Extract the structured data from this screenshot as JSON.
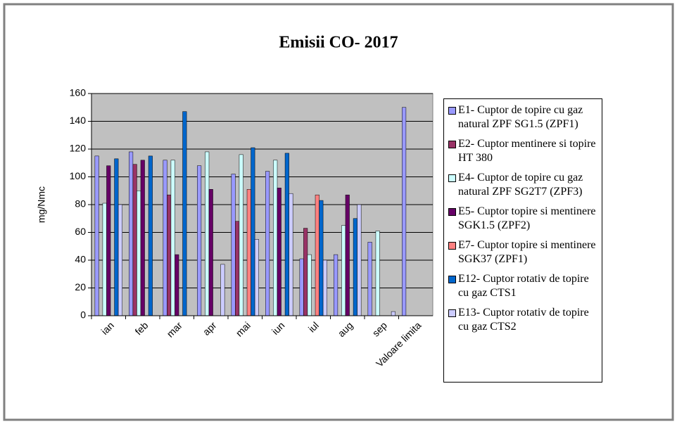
{
  "chart_data": {
    "type": "bar",
    "title": "Emisii CO- 2017",
    "y_label": "mg/Nmc",
    "categories": [
      "ian",
      "feb",
      "mar",
      "apr",
      "mai",
      "iun",
      "iul",
      "aug",
      "sep",
      "Valoare limita"
    ],
    "series": [
      {
        "name": "E1- Cuptor de topire cu gaz natural ZPF SG1.5 (ZPF1)",
        "color": "#9999ff",
        "values": [
          115,
          118,
          112,
          108,
          102,
          104,
          41,
          44,
          53,
          150
        ]
      },
      {
        "name": "E2- Cuptor mentinere si topire HT 380",
        "color": "#993366",
        "values": [
          null,
          109,
          87,
          null,
          68,
          null,
          63,
          null,
          null,
          null
        ]
      },
      {
        "name": "E4- Cuptor de topire cu gaz natural ZPF SG2T7 (ZPF3)",
        "color": "#ccffff",
        "values": [
          81,
          90,
          112,
          118,
          116,
          112,
          44,
          65,
          61,
          null
        ]
      },
      {
        "name": "E5- Cuptor topire si mentinere SGK1.5 (ZPF2)",
        "color": "#660066",
        "values": [
          108,
          112,
          44,
          91,
          null,
          92,
          null,
          87,
          null,
          null
        ]
      },
      {
        "name": "E7- Cuptor topire si mentinere SGK37 (ZPF1)",
        "color": "#ff8080",
        "values": [
          null,
          null,
          null,
          null,
          91,
          null,
          87,
          null,
          null,
          null
        ]
      },
      {
        "name": "E12- Cuptor rotativ de topire cu gaz CTS1",
        "color": "#0066cc",
        "values": [
          113,
          115,
          147,
          null,
          121,
          117,
          83,
          70,
          null,
          null
        ]
      },
      {
        "name": "E13- Cuptor rotativ de topire cu gaz CTS2",
        "color": "#ccccff",
        "values": [
          80,
          null,
          null,
          37,
          55,
          88,
          40,
          80,
          3,
          null
        ]
      }
    ],
    "ylim": [
      0,
      160
    ],
    "yticks": [
      0,
      20,
      40,
      60,
      80,
      100,
      120,
      140,
      160
    ],
    "grid": true,
    "plot_background": "#c0c0c0"
  }
}
